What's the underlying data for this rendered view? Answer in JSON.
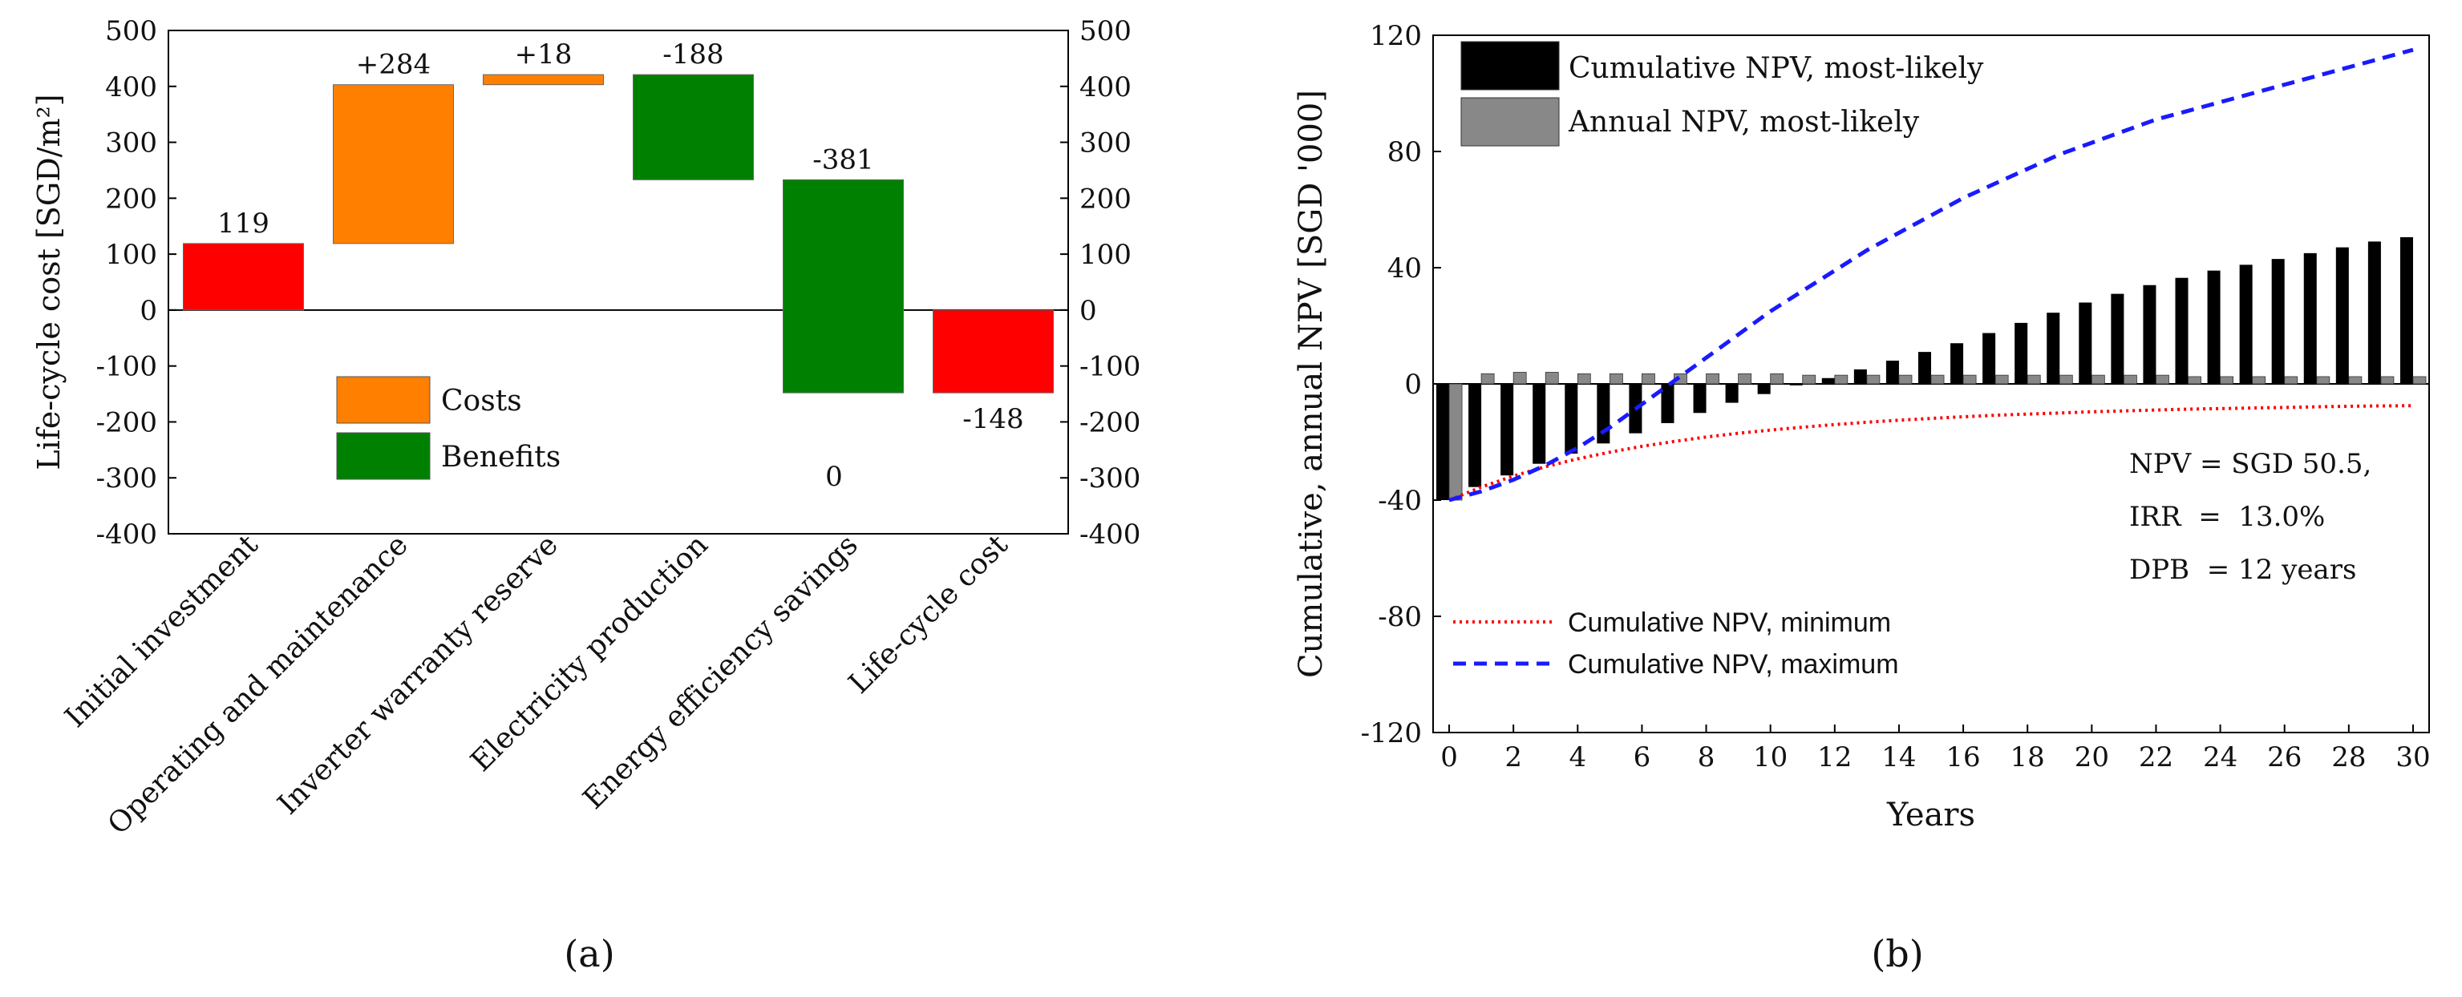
{
  "chart_data": [
    {
      "panel_label": "(a)",
      "type": "waterfall",
      "categories": [
        "Initial investment",
        "Operating and maintenance",
        "Inverter warranty reserve",
        "Electricity production",
        "Energy efficiency savings",
        "Life-cycle cost"
      ],
      "bars": [
        {
          "start": 0,
          "end": 119,
          "kind": "total",
          "label": "119"
        },
        {
          "start": 119,
          "end": 403,
          "kind": "cost",
          "label": "+284"
        },
        {
          "start": 403,
          "end": 421,
          "kind": "cost",
          "label": "+18"
        },
        {
          "start": 421,
          "end": 233,
          "kind": "benefit",
          "label": "-188"
        },
        {
          "start": 233,
          "end": -148,
          "kind": "benefit",
          "label": "-381"
        },
        {
          "start": 0,
          "end": -148,
          "kind": "total",
          "label": "-148"
        }
      ],
      "extra_annotation": "0",
      "ylabel": "Life-cycle cost [SGD/m²]",
      "ylim": [
        -400,
        500
      ],
      "yticks": [
        -400,
        -300,
        -200,
        -100,
        0,
        100,
        200,
        300,
        400,
        500
      ],
      "ytick_labels": [
        "-400",
        "-300",
        "-200",
        "-100",
        "0",
        "100",
        "200",
        "300",
        "400",
        "500"
      ],
      "legend": [
        {
          "name": "Costs",
          "kind": "cost"
        },
        {
          "name": "Benefits",
          "kind": "benefit"
        }
      ],
      "colors": {
        "total": "#ff0000",
        "cost": "#ff8000",
        "benefit": "#008000"
      }
    },
    {
      "panel_label": "(b)",
      "type": "bar+line",
      "xlabel": "Years",
      "ylabel": "Cumulative, annual NPV [SGD '000]",
      "xlim": [
        -0.5,
        30.5
      ],
      "ylim": [
        -120,
        120
      ],
      "xticks": [
        0,
        2,
        4,
        6,
        8,
        10,
        12,
        14,
        16,
        18,
        20,
        22,
        24,
        26,
        28,
        30
      ],
      "xtick_labels": [
        "0",
        "2",
        "4",
        "6",
        "8",
        "10",
        "12",
        "14",
        "16",
        "18",
        "20",
        "22",
        "24",
        "26",
        "28",
        "30"
      ],
      "yticks": [
        -120,
        -80,
        -40,
        0,
        40,
        80,
        120
      ],
      "ytick_labels": [
        "-120",
        "-80",
        "-40",
        "0",
        "40",
        "80",
        "120"
      ],
      "years": [
        0,
        1,
        2,
        3,
        4,
        5,
        6,
        7,
        8,
        9,
        10,
        11,
        12,
        13,
        14,
        15,
        16,
        17,
        18,
        19,
        20,
        21,
        22,
        23,
        24,
        25,
        26,
        27,
        28,
        29,
        30
      ],
      "series": [
        {
          "name": "Cumulative NPV, most-likely",
          "kind": "bar",
          "color": "#000000",
          "values": [
            -40,
            -35.5,
            -31.5,
            -27.5,
            -24,
            -20.5,
            -17,
            -13.5,
            -10,
            -6.5,
            -3.5,
            -0.5,
            2,
            5,
            8,
            11,
            14,
            17.5,
            21,
            24.5,
            28,
            31,
            34,
            36.5,
            39,
            41,
            43,
            45,
            47,
            49,
            50.5
          ]
        },
        {
          "name": "Annual NPV, most-likely",
          "kind": "bar",
          "color": "#888888",
          "values": [
            -40,
            3.5,
            4,
            4,
            3.5,
            3.5,
            3.5,
            3.5,
            3.5,
            3.5,
            3.5,
            3,
            3,
            3,
            3,
            3,
            3,
            3,
            3,
            3,
            3,
            3,
            3,
            2.5,
            2.5,
            2.5,
            2.5,
            2.5,
            2.5,
            2.5,
            2.5
          ]
        },
        {
          "name": "Cumulative NPV, minimum",
          "kind": "line",
          "style": "dotted",
          "color": "#ff0000",
          "values": [
            -40,
            -35.5,
            -31.7,
            -28.5,
            -25.8,
            -23.5,
            -21.5,
            -19.8,
            -18.3,
            -17,
            -15.9,
            -14.9,
            -14,
            -13.2,
            -12.5,
            -11.9,
            -11.3,
            -10.8,
            -10.4,
            -10,
            -9.6,
            -9.3,
            -9,
            -8.7,
            -8.5,
            -8.3,
            -8.1,
            -7.9,
            -7.7,
            -7.6,
            -7.5
          ]
        },
        {
          "name": "Cumulative NPV, maximum",
          "kind": "line",
          "style": "dashed",
          "color": "#1a1aff",
          "values": [
            -40,
            -37,
            -33,
            -28,
            -22,
            -15,
            -7,
            1,
            9,
            17,
            25,
            32,
            39,
            46,
            52,
            58,
            64,
            69,
            74,
            79,
            83,
            87,
            91,
            94,
            97,
            100,
            103,
            106,
            109,
            112,
            115
          ]
        }
      ],
      "annotations": [
        "NPV = SGD 50.5,",
        "IRR  =  13.0%",
        "DPB  = 12 years"
      ]
    }
  ]
}
